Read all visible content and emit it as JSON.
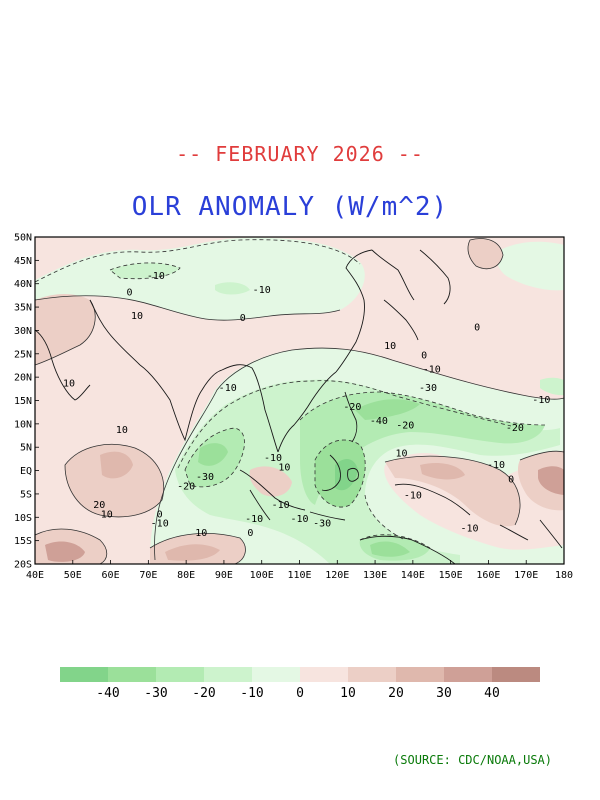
{
  "header": {
    "subtitle": "-- FEBRUARY 2026 --",
    "title": "OLR ANOMALY (W/m^2)"
  },
  "colors": {
    "subtitle": "#e03c3c",
    "title": "#2a3fd8",
    "source": "#0a7a0a",
    "coast": "#1a1a1a"
  },
  "map": {
    "lon_range": [
      40,
      180
    ],
    "lat_range": [
      -20,
      50
    ],
    "lat_ticks": [
      "50N",
      "45N",
      "40N",
      "35N",
      "30N",
      "25N",
      "20N",
      "15N",
      "10N",
      "5N",
      "EQ",
      "5S",
      "10S",
      "15S",
      "20S"
    ],
    "lon_ticks": [
      "40E",
      "50E",
      "60E",
      "70E",
      "80E",
      "90E",
      "100E",
      "110E",
      "120E",
      "130E",
      "140E",
      "150E",
      "160E",
      "170E",
      "180"
    ],
    "contour_labels": [
      {
        "text": "-10",
        "lon": 72,
        "lat": 41
      },
      {
        "text": "0",
        "lon": 65,
        "lat": 37.5
      },
      {
        "text": "-10",
        "lon": 100,
        "lat": 38
      },
      {
        "text": "10",
        "lon": 67,
        "lat": 32.5
      },
      {
        "text": "0",
        "lon": 95,
        "lat": 32
      },
      {
        "text": "0",
        "lon": 157,
        "lat": 30
      },
      {
        "text": "10",
        "lon": 134,
        "lat": 26
      },
      {
        "text": "0",
        "lon": 143,
        "lat": 24
      },
      {
        "text": "-10",
        "lon": 145,
        "lat": 21
      },
      {
        "text": "10",
        "lon": 49,
        "lat": 18
      },
      {
        "text": "-10",
        "lon": 91,
        "lat": 17
      },
      {
        "text": "-30",
        "lon": 144,
        "lat": 17
      },
      {
        "text": "-10",
        "lon": 174,
        "lat": 14.5
      },
      {
        "text": "-20",
        "lon": 124,
        "lat": 13
      },
      {
        "text": "-40",
        "lon": 131,
        "lat": 10
      },
      {
        "text": "-20",
        "lon": 138,
        "lat": 9
      },
      {
        "text": "-20",
        "lon": 167,
        "lat": 8.5
      },
      {
        "text": "10",
        "lon": 63,
        "lat": 8
      },
      {
        "text": "-10",
        "lon": 103,
        "lat": 2
      },
      {
        "text": "10",
        "lon": 137,
        "lat": 3
      },
      {
        "text": "10",
        "lon": 106,
        "lat": 0
      },
      {
        "text": "-10",
        "lon": 162,
        "lat": 0.5
      },
      {
        "text": "-30",
        "lon": 85,
        "lat": -2
      },
      {
        "text": "0",
        "lon": 166,
        "lat": -2.5
      },
      {
        "text": "-20",
        "lon": 80,
        "lat": -4
      },
      {
        "text": "-10",
        "lon": 140,
        "lat": -6
      },
      {
        "text": "-10",
        "lon": 105,
        "lat": -8
      },
      {
        "text": "20",
        "lon": 57,
        "lat": -8
      },
      {
        "text": "10",
        "lon": 59,
        "lat": -10
      },
      {
        "text": "0",
        "lon": 73,
        "lat": -10
      },
      {
        "text": "-10",
        "lon": 73,
        "lat": -12
      },
      {
        "text": "-10",
        "lon": 98,
        "lat": -11
      },
      {
        "text": "-10",
        "lon": 110,
        "lat": -11
      },
      {
        "text": "-30",
        "lon": 116,
        "lat": -12
      },
      {
        "text": "0",
        "lon": 97,
        "lat": -14
      },
      {
        "text": "10",
        "lon": 84,
        "lat": -14
      },
      {
        "text": "-10",
        "lon": 155,
        "lat": -13
      }
    ]
  },
  "legend": {
    "labels": [
      "-40",
      "-30",
      "-20",
      "-10",
      "0",
      "10",
      "20",
      "30",
      "40"
    ],
    "colors": [
      "#82d48a",
      "#9be09a",
      "#b3ebb3",
      "#cdf3cd",
      "#e4f8e4",
      "#f7e4df",
      "#eccfc6",
      "#dfb8ad",
      "#cfa097",
      "#bb8a80"
    ]
  },
  "source": "(SOURCE: CDC/NOAA,USA)"
}
